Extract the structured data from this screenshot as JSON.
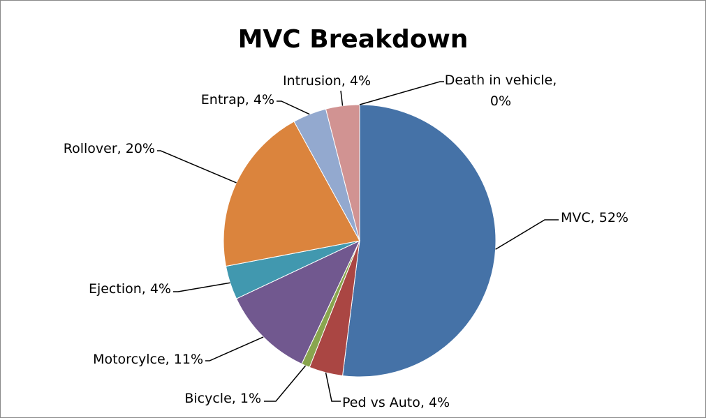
{
  "chart_data": {
    "type": "pie",
    "title": "MVC Breakdown",
    "categories": [
      "MVC",
      "Ped vs Auto",
      "Bicycle",
      "Motorcylce",
      "Ejection",
      "Rollover",
      "Entrap",
      "Intrusion",
      "Death in vehicle"
    ],
    "values": [
      52,
      4,
      1,
      11,
      4,
      20,
      4,
      4,
      0
    ],
    "value_labels": [
      "MVC, 52%",
      "Ped vs Auto, 4%",
      "Bicycle, 1%",
      "Motorcylce, 11%",
      "Ejection, 4%",
      "Rollover, 20%",
      "Entrap, 4%",
      "Intrusion, 4%",
      "Death in vehicle, 0%"
    ],
    "colors": [
      "#4572a7",
      "#aa4643",
      "#89a54e",
      "#71588f",
      "#4198af",
      "#db843d",
      "#93a9cf",
      "#d19392",
      "#b9cd96"
    ]
  }
}
